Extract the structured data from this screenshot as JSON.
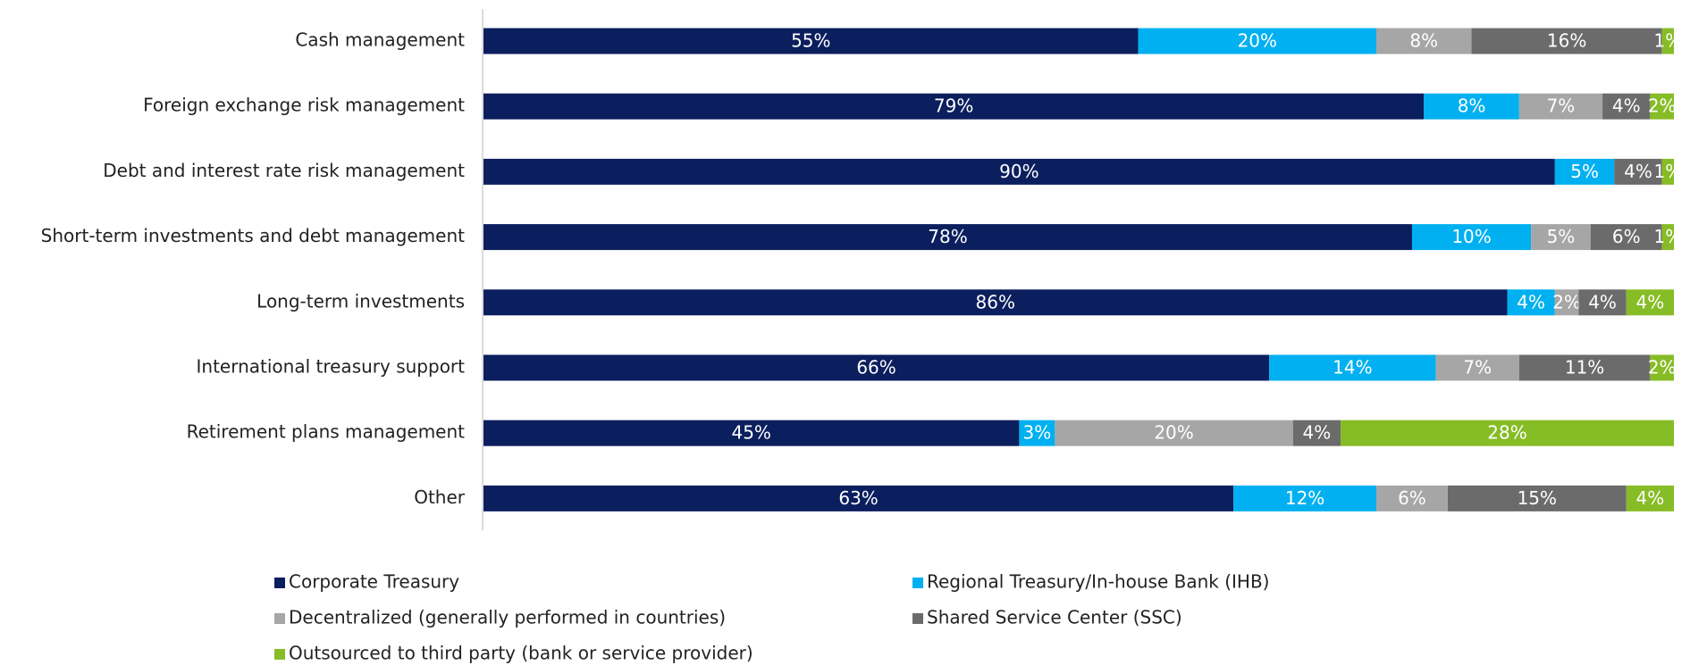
{
  "chart_data": {
    "type": "stacked-bar-horizontal",
    "categories": [
      "Cash management",
      "Foreign exchange risk management",
      "Debt and interest rate risk management",
      "Short-term investments and debt management",
      "Long-term investments",
      "International treasury support",
      "Retirement plans management",
      "Other"
    ],
    "xlim": [
      0,
      100
    ],
    "series": [
      {
        "name": "Corporate Treasury",
        "color": "#0b1f5e",
        "values": [
          55,
          79,
          90,
          78,
          86,
          66,
          45,
          63
        ],
        "value_labels": [
          "55%",
          "79%",
          "90%",
          "78%",
          "86%",
          "66%",
          "45%",
          "63%"
        ]
      },
      {
        "name": "Regional Treasury/In-house Bank (IHB)",
        "color": "#00b0f0",
        "values": [
          20,
          8,
          5,
          10,
          4,
          14,
          3,
          12
        ],
        "value_labels": [
          "20%",
          "8%",
          "5%",
          "10%",
          "4%",
          "14%",
          "3%",
          "12%"
        ]
      },
      {
        "name": "Decentralized (generally performed in countries)",
        "color": "#a6a6a6",
        "values": [
          8,
          7,
          null,
          5,
          2,
          7,
          20,
          6
        ],
        "value_labels": [
          "8%",
          "7%",
          null,
          "5%",
          "2%",
          "7%",
          "20%",
          "6%"
        ]
      },
      {
        "name": "Shared Service Center (SSC)",
        "color": "#6b6b6b",
        "values": [
          16,
          4,
          4,
          6,
          4,
          11,
          4,
          15
        ],
        "value_labels": [
          "16%",
          "4%",
          "4%",
          "6%",
          "4%",
          "11%",
          "4%",
          "15%"
        ]
      },
      {
        "name": "Outsourced to third party (bank or service provider)",
        "color": "#86bc25",
        "values": [
          1,
          2,
          1,
          1,
          4,
          2,
          28,
          4
        ],
        "value_labels": [
          "1%",
          "2%",
          "1%",
          "1%",
          "4%",
          "2%",
          "28%",
          "4%"
        ]
      }
    ]
  }
}
